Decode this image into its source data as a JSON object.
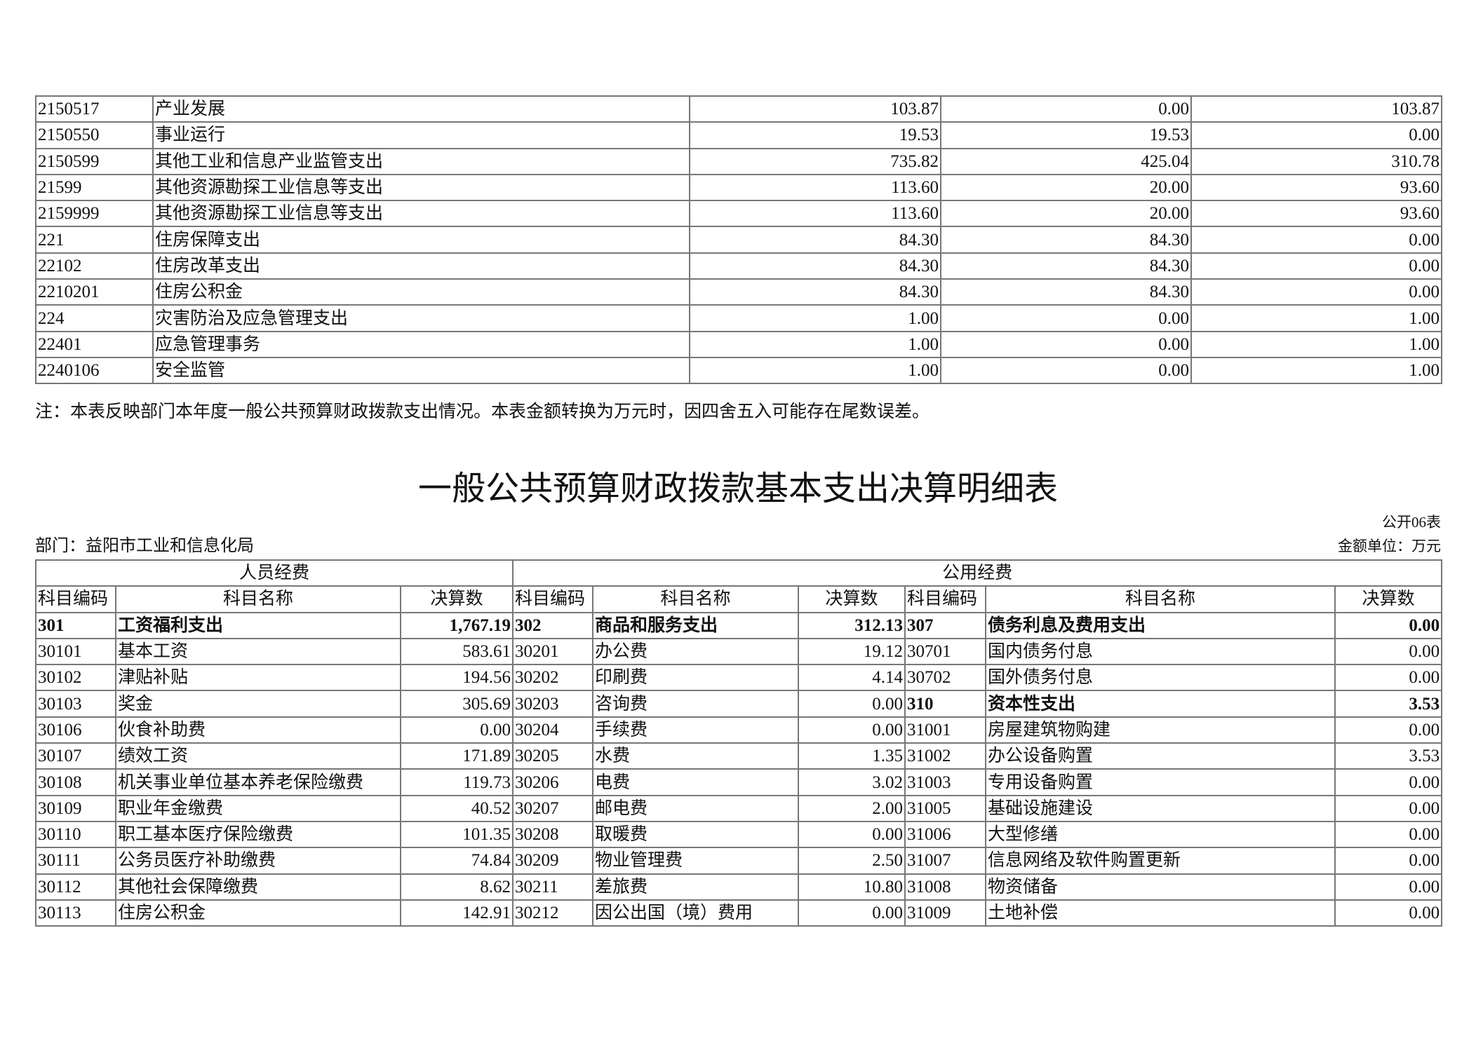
{
  "top_table": {
    "rows": [
      [
        "2150517",
        "产业发展",
        "103.87",
        "0.00",
        "103.87"
      ],
      [
        "2150550",
        "事业运行",
        "19.53",
        "19.53",
        "0.00"
      ],
      [
        "2150599",
        "其他工业和信息产业监管支出",
        "735.82",
        "425.04",
        "310.78"
      ],
      [
        "21599",
        "其他资源勘探工业信息等支出",
        "113.60",
        "20.00",
        "93.60"
      ],
      [
        "2159999",
        "其他资源勘探工业信息等支出",
        "113.60",
        "20.00",
        "93.60"
      ],
      [
        "221",
        "住房保障支出",
        "84.30",
        "84.30",
        "0.00"
      ],
      [
        "22102",
        "住房改革支出",
        "84.30",
        "84.30",
        "0.00"
      ],
      [
        "2210201",
        "住房公积金",
        "84.30",
        "84.30",
        "0.00"
      ],
      [
        "224",
        "灾害防治及应急管理支出",
        "1.00",
        "0.00",
        "1.00"
      ],
      [
        "22401",
        "应急管理事务",
        "1.00",
        "0.00",
        "1.00"
      ],
      [
        "2240106",
        "安全监管",
        "1.00",
        "0.00",
        "1.00"
      ]
    ]
  },
  "note": "注：本表反映部门本年度一般公共预算财政拨款支出情况。本表金额转换为万元时，因四舍五入可能存在尾数误差。",
  "title": "一般公共预算财政拨款基本支出决算明细表",
  "form_no": "公开06表",
  "department": "部门：益阳市工业和信息化局",
  "unit": "金额单位：万元",
  "bottom_table": {
    "group_headers": [
      "人员经费",
      "公用经费"
    ],
    "col_headers": [
      "科目编码",
      "科目名称",
      "决算数",
      "科目编码",
      "科目名称",
      "决算数",
      "科目编码",
      "科目名称",
      "决算数"
    ],
    "rows": [
      {
        "cells": [
          "301",
          "工资福利支出",
          "1,767.19",
          "302",
          "商品和服务支出",
          "312.13",
          "307",
          "债务利息及费用支出",
          "0.00"
        ],
        "bold": [
          0,
          1,
          2,
          3,
          4,
          5,
          6,
          7,
          8
        ]
      },
      {
        "cells": [
          "30101",
          "基本工资",
          "583.61",
          "30201",
          "办公费",
          "19.12",
          "30701",
          "国内债务付息",
          "0.00"
        ],
        "bold": []
      },
      {
        "cells": [
          "30102",
          "津贴补贴",
          "194.56",
          "30202",
          "印刷费",
          "4.14",
          "30702",
          "国外债务付息",
          "0.00"
        ],
        "bold": []
      },
      {
        "cells": [
          "30103",
          "奖金",
          "305.69",
          "30203",
          "咨询费",
          "0.00",
          "310",
          "资本性支出",
          "3.53"
        ],
        "bold": [
          6,
          7,
          8
        ]
      },
      {
        "cells": [
          "30106",
          "伙食补助费",
          "0.00",
          "30204",
          "手续费",
          "0.00",
          "31001",
          "房屋建筑物购建",
          "0.00"
        ],
        "bold": []
      },
      {
        "cells": [
          "30107",
          "绩效工资",
          "171.89",
          "30205",
          "水费",
          "1.35",
          "31002",
          "办公设备购置",
          "3.53"
        ],
        "bold": []
      },
      {
        "cells": [
          "30108",
          "机关事业单位基本养老保险缴费",
          "119.73",
          "30206",
          "电费",
          "3.02",
          "31003",
          "专用设备购置",
          "0.00"
        ],
        "bold": []
      },
      {
        "cells": [
          "30109",
          "职业年金缴费",
          "40.52",
          "30207",
          "邮电费",
          "2.00",
          "31005",
          "基础设施建设",
          "0.00"
        ],
        "bold": []
      },
      {
        "cells": [
          "30110",
          "职工基本医疗保险缴费",
          "101.35",
          "30208",
          "取暖费",
          "0.00",
          "31006",
          "大型修缮",
          "0.00"
        ],
        "bold": []
      },
      {
        "cells": [
          "30111",
          "公务员医疗补助缴费",
          "74.84",
          "30209",
          "物业管理费",
          "2.50",
          "31007",
          "信息网络及软件购置更新",
          "0.00"
        ],
        "bold": []
      },
      {
        "cells": [
          "30112",
          "其他社会保障缴费",
          "8.62",
          "30211",
          "差旅费",
          "10.80",
          "31008",
          "物资储备",
          "0.00"
        ],
        "bold": []
      },
      {
        "cells": [
          "30113",
          "住房公积金",
          "142.91",
          "30212",
          "因公出国（境）费用",
          "0.00",
          "31009",
          "土地补偿",
          "0.00"
        ],
        "bold": []
      }
    ]
  }
}
